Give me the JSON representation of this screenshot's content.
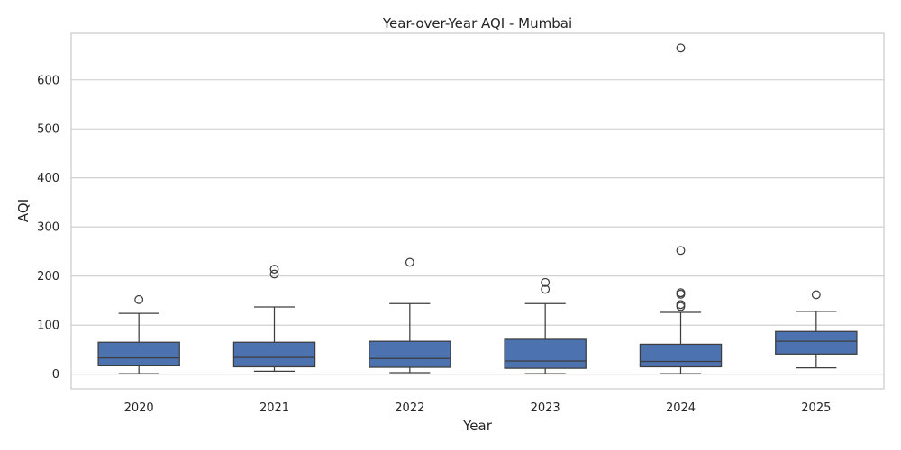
{
  "chart_data": {
    "type": "box",
    "title": "Year-over-Year AQI - Mumbai",
    "xlabel": "Year",
    "ylabel": "AQI",
    "ylim": [
      -30,
      695
    ],
    "yticks": [
      0,
      100,
      200,
      300,
      400,
      500,
      600
    ],
    "grid": "horizontal",
    "box_color": "#4c72b0",
    "line_color": "#3d3d3d",
    "categories": [
      "2020",
      "2021",
      "2022",
      "2023",
      "2024",
      "2025"
    ],
    "boxes": [
      {
        "category": "2020",
        "whisker_low": 1,
        "q1": 17,
        "median": 33,
        "q3": 65,
        "whisker_high": 124,
        "outliers": [
          152
        ]
      },
      {
        "category": "2021",
        "whisker_low": 6,
        "q1": 15,
        "median": 34,
        "q3": 65,
        "whisker_high": 137,
        "outliers": [
          204,
          214
        ]
      },
      {
        "category": "2022",
        "whisker_low": 3,
        "q1": 14,
        "median": 32,
        "q3": 67,
        "whisker_high": 144,
        "outliers": [
          228
        ]
      },
      {
        "category": "2023",
        "whisker_low": 1,
        "q1": 12,
        "median": 27,
        "q3": 71,
        "whisker_high": 144,
        "outliers": [
          173,
          187
        ]
      },
      {
        "category": "2024",
        "whisker_low": 1,
        "q1": 15,
        "median": 26,
        "q3": 61,
        "whisker_high": 126,
        "outliers": [
          138,
          142,
          163,
          166,
          252,
          665
        ]
      },
      {
        "category": "2025",
        "whisker_low": 13,
        "q1": 41,
        "median": 67,
        "q3": 87,
        "whisker_high": 128,
        "outliers": [
          162
        ]
      }
    ]
  }
}
